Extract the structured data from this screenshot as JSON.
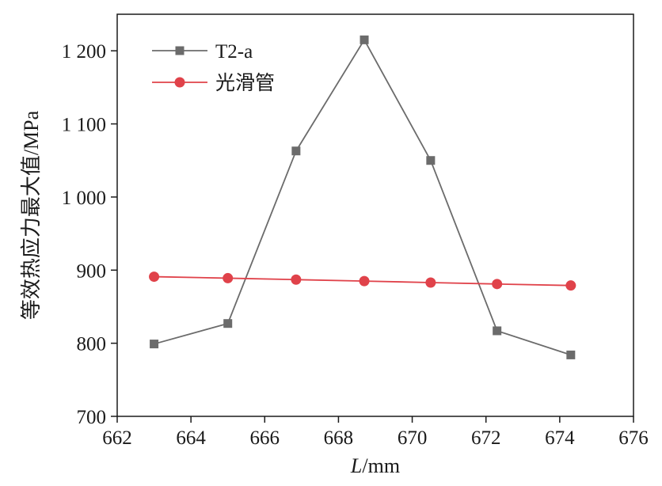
{
  "chart_data": {
    "type": "line",
    "xlabel_italic": "L",
    "xlabel_unit": "/mm",
    "ylabel": "等效热应力最大值/MPa",
    "xlim": [
      662,
      676
    ],
    "ylim": [
      700,
      1250
    ],
    "x_ticks": [
      662,
      664,
      666,
      668,
      670,
      672,
      674,
      676
    ],
    "x_tick_labels": [
      "662",
      "664",
      "666",
      "668",
      "670",
      "672",
      "674",
      "676"
    ],
    "y_ticks": [
      700,
      800,
      900,
      1000,
      1100,
      1200
    ],
    "y_tick_labels": [
      "700",
      "800",
      "900",
      "1 000",
      "1 100",
      "1 200"
    ],
    "grid": false,
    "legend_position": "top-left",
    "series": [
      {
        "name": "T2-a",
        "marker": "square",
        "color": "#6b6b6b",
        "x": [
          663,
          665,
          666.85,
          668.7,
          670.5,
          672.3,
          674.3
        ],
        "y": [
          799,
          827,
          1063,
          1215,
          1050,
          817,
          784
        ]
      },
      {
        "name": "光滑管",
        "marker": "circle",
        "color": "#e0424a",
        "x": [
          663,
          665,
          666.85,
          668.7,
          670.5,
          672.3,
          674.3
        ],
        "y": [
          891,
          889,
          887,
          885,
          883,
          881,
          879
        ]
      }
    ]
  }
}
